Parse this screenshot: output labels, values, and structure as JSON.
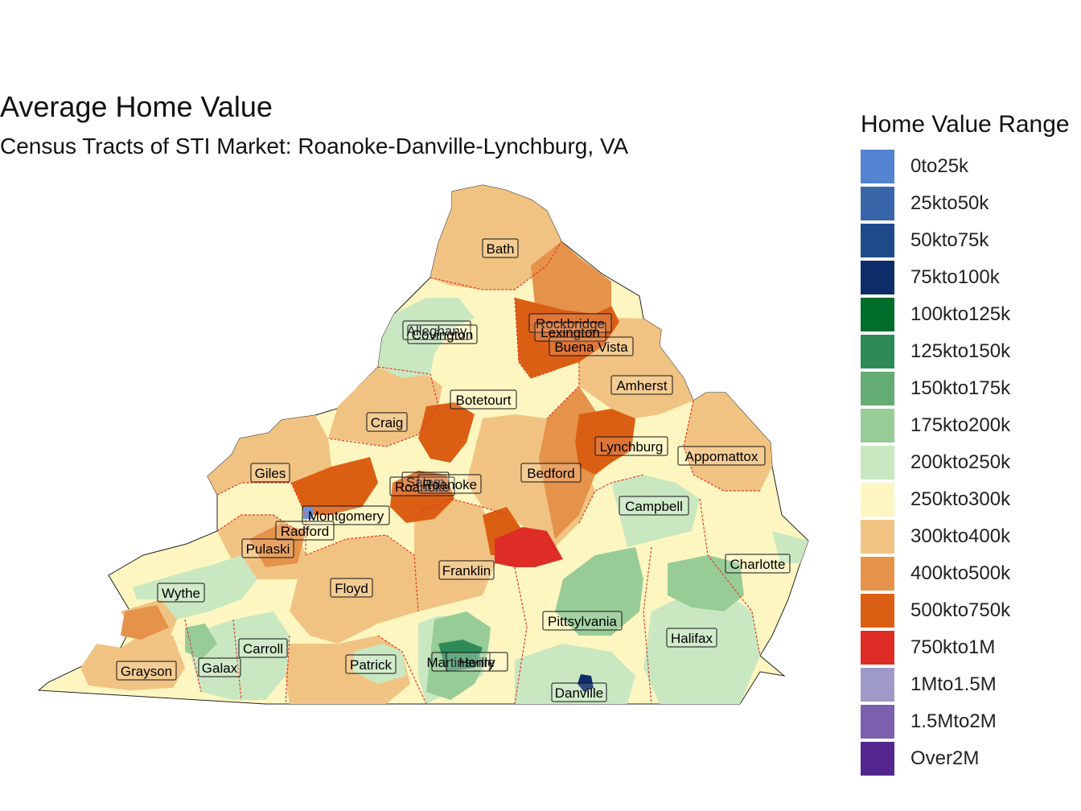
{
  "title": "Average Home Value",
  "subtitle": "Census Tracts of STI Market: Roanoke-Danville-Lynchburg, VA",
  "legend": {
    "title": "Home Value Range",
    "items": [
      {
        "label": "0to25k",
        "color": "#5383d1"
      },
      {
        "label": "25kto50k",
        "color": "#3966a8"
      },
      {
        "label": "50kto75k",
        "color": "#1f4a8a"
      },
      {
        "label": "75kto100k",
        "color": "#0d2c6a"
      },
      {
        "label": "100kto125k",
        "color": "#006d2c"
      },
      {
        "label": "125kto150k",
        "color": "#2e8b57"
      },
      {
        "label": "150kto175k",
        "color": "#63ac74"
      },
      {
        "label": "175kto200k",
        "color": "#97cc97"
      },
      {
        "label": "200kto250k",
        "color": "#c9e8c2"
      },
      {
        "label": "250kto300k",
        "color": "#fef6c0"
      },
      {
        "label": "300kto400k",
        "color": "#f1c382"
      },
      {
        "label": "400kto500k",
        "color": "#e5924a"
      },
      {
        "label": "500kto750k",
        "color": "#db5f12"
      },
      {
        "label": "750kto1M",
        "color": "#de2d26"
      },
      {
        "label": "1Mto1.5M",
        "color": "#9e9ac8"
      },
      {
        "label": "1.5Mto2M",
        "color": "#7b61ad"
      },
      {
        "label": "Over2M",
        "color": "#54278f"
      }
    ]
  },
  "regions": [
    "Bath",
    "Alleghany",
    "Covington",
    "Rockbridge",
    "Lexington",
    "Buena Vista",
    "Amherst",
    "Botetourt",
    "Craig",
    "Lynchburg",
    "Appomattox",
    "Giles",
    "Salem",
    "Roanoke",
    "Roanoke",
    "Bedford",
    "Montgomery",
    "Campbell",
    "Radford",
    "Pulaski",
    "Charlotte",
    "Franklin",
    "Floyd",
    "Wythe",
    "Pittsylvania",
    "Halifax",
    "Carroll",
    "Grayson",
    "Galax",
    "Patrick",
    "Martinsville",
    "Henry",
    "Danville"
  ]
}
